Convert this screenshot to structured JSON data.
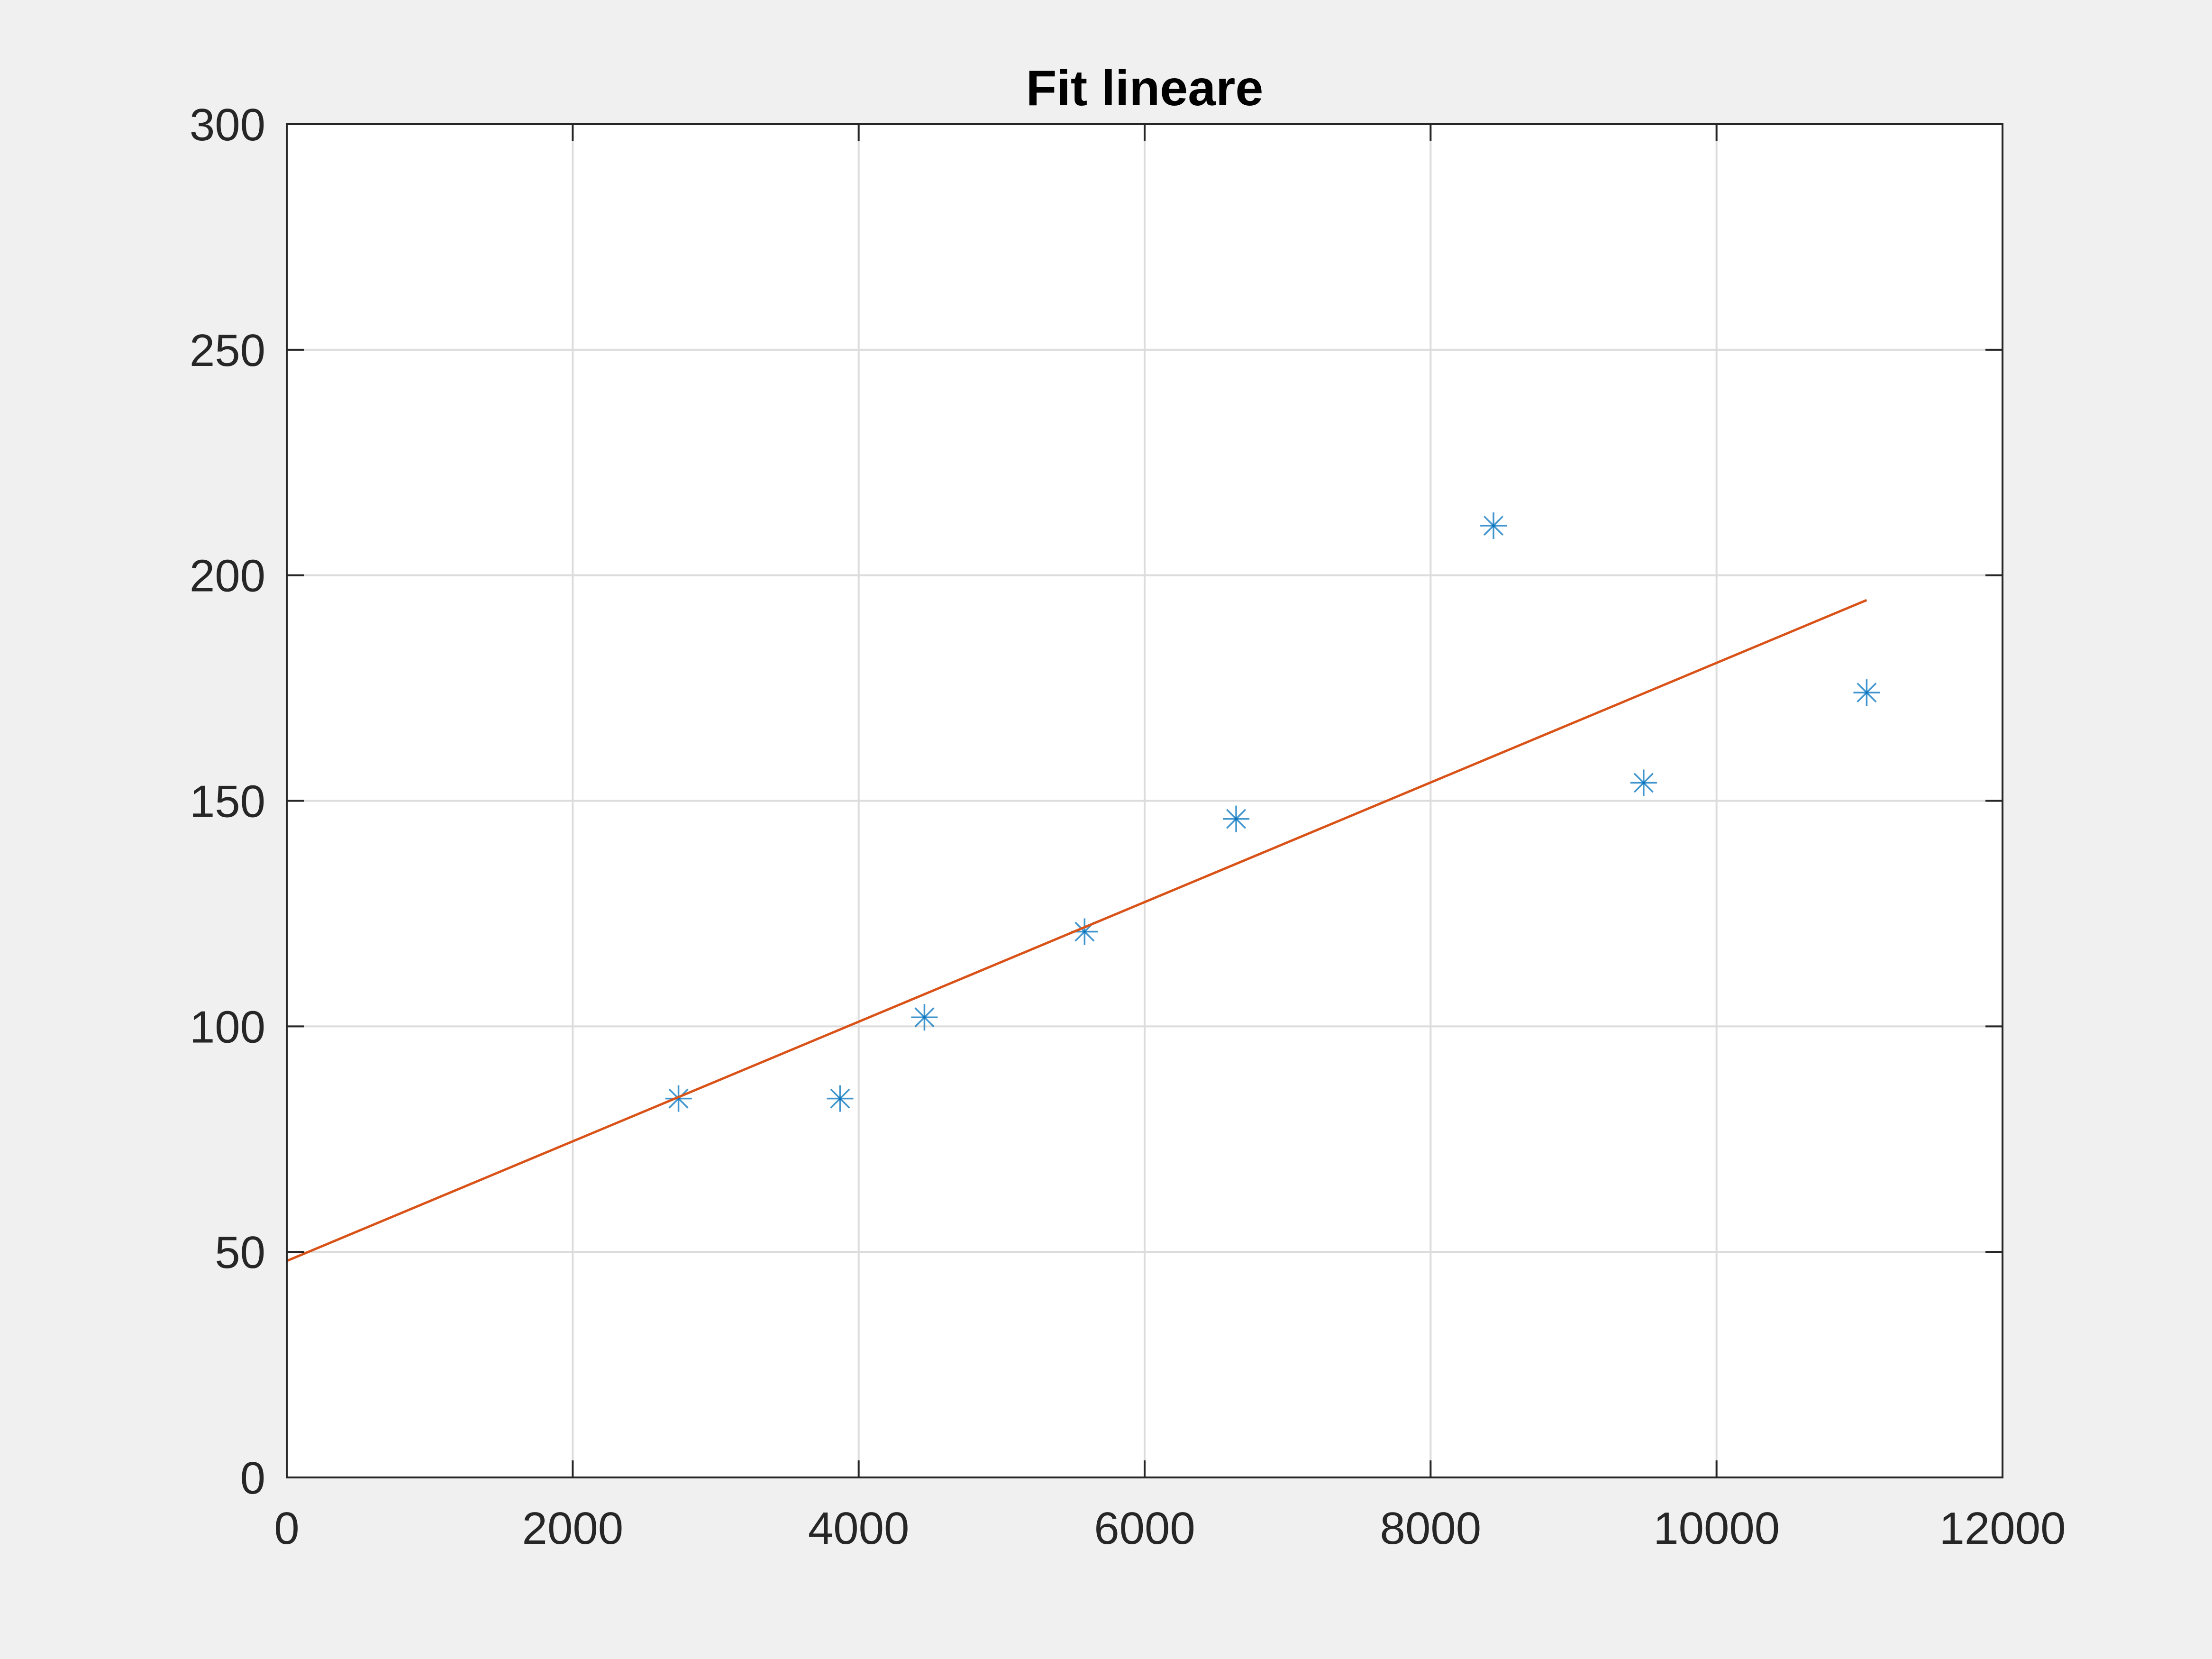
{
  "chart_data": {
    "type": "scatter",
    "title": "Fit lineare",
    "xlabel": "",
    "ylabel": "",
    "xlim": [
      0,
      12000
    ],
    "ylim": [
      0,
      300
    ],
    "xticks": [
      0,
      2000,
      4000,
      6000,
      8000,
      10000,
      12000
    ],
    "yticks": [
      0,
      50,
      100,
      150,
      200,
      250,
      300
    ],
    "grid": true,
    "series": [
      {
        "kind": "scatter",
        "marker": "asterisk",
        "color": "#0072bd",
        "x": [
          2740,
          3870,
          4460,
          5580,
          6640,
          8440,
          9490,
          11050
        ],
        "y": [
          84,
          84,
          102,
          121,
          146,
          211,
          154,
          174
        ]
      },
      {
        "kind": "line",
        "color": "#d95319",
        "x": [
          0,
          11050
        ],
        "y": [
          48,
          194.5
        ]
      }
    ]
  },
  "colors": {
    "background": "#f0f0f0",
    "axes_background": "#ffffff",
    "axis": "#262626",
    "grid": "#dcdcdc"
  }
}
